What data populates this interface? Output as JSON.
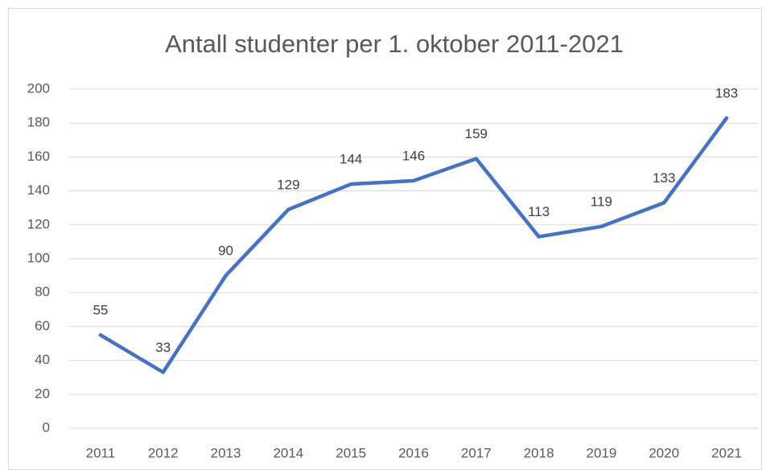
{
  "chart_data": {
    "type": "line",
    "title": "Antall studenter per 1. oktober 2011-2021",
    "categories": [
      "2011",
      "2012",
      "2013",
      "2014",
      "2015",
      "2016",
      "2017",
      "2018",
      "2019",
      "2020",
      "2021"
    ],
    "values": [
      55,
      33,
      90,
      129,
      144,
      146,
      159,
      113,
      119,
      133,
      183
    ],
    "color": "#4472c4",
    "ylim": [
      0,
      200
    ],
    "yticks": [
      0,
      20,
      40,
      60,
      80,
      100,
      120,
      140,
      160,
      180,
      200
    ],
    "grid": true
  }
}
